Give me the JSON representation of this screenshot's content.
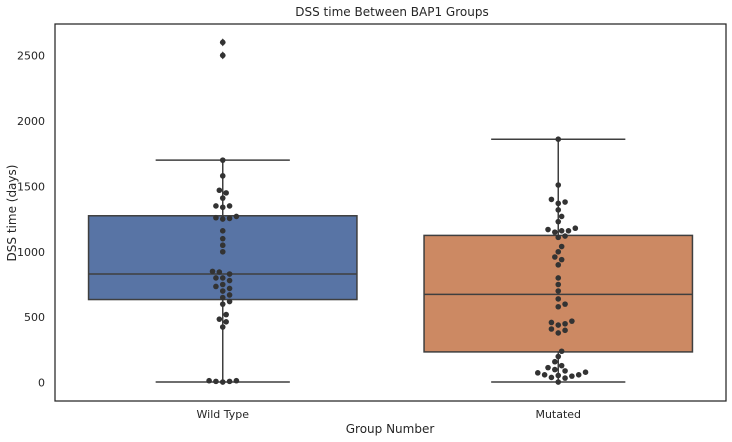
{
  "chart_data": {
    "type": "box",
    "title": "DSS time Between BAP1 Groups",
    "xlabel": "Group Number",
    "ylabel": "DSS time (days)",
    "ylim": [
      -140,
      2740
    ],
    "yticks": [
      0,
      500,
      1000,
      1500,
      2000,
      2500
    ],
    "grid": false,
    "categories": [
      "Wild Type",
      "Mutated"
    ],
    "boxes": [
      {
        "name": "Wild Type",
        "color": "#5874a5",
        "whisker_low": 5,
        "q1": 635,
        "median": 830,
        "q3": 1275,
        "whisker_high": 1700,
        "outliers": [
          2500,
          2600
        ]
      },
      {
        "name": "Mutated",
        "color": "#cc8963",
        "whisker_low": 5,
        "q1": 235,
        "median": 675,
        "q3": 1125,
        "whisker_high": 1860,
        "outliers": []
      }
    ],
    "swarm": [
      {
        "name": "Wild Type",
        "values": [
          5,
          10,
          10,
          15,
          15,
          425,
          465,
          485,
          520,
          600,
          620,
          650,
          670,
          700,
          720,
          735,
          750,
          780,
          800,
          800,
          830,
          845,
          850,
          1000,
          1050,
          1100,
          1160,
          1250,
          1255,
          1260,
          1270,
          1340,
          1350,
          1350,
          1410,
          1450,
          1470,
          1580,
          1700,
          2500,
          2600
        ]
      },
      {
        "name": "Mutated",
        "values": [
          5,
          35,
          40,
          50,
          55,
          60,
          60,
          75,
          80,
          90,
          100,
          115,
          130,
          160,
          200,
          240,
          380,
          400,
          410,
          440,
          450,
          460,
          470,
          580,
          600,
          640,
          700,
          750,
          800,
          900,
          940,
          960,
          1000,
          1040,
          1110,
          1120,
          1150,
          1160,
          1160,
          1170,
          1180,
          1230,
          1270,
          1320,
          1370,
          1380,
          1400,
          1510,
          1860
        ]
      }
    ],
    "colors": {
      "axis": "#262626",
      "box_edge": "#3f3f3f",
      "point": "#333333"
    }
  }
}
